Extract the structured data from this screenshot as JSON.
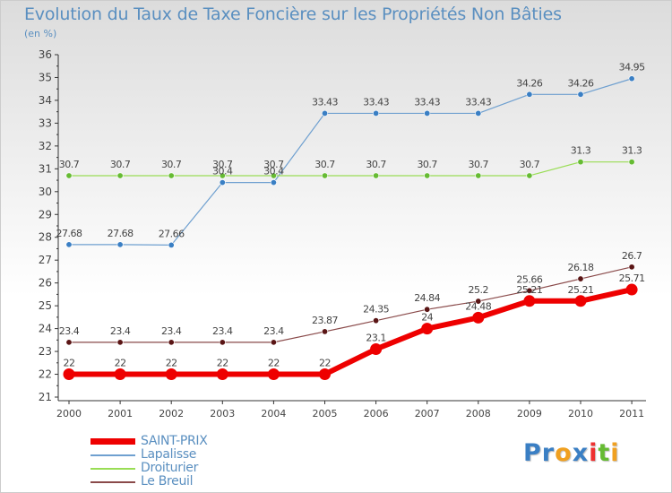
{
  "title": "Evolution du Taux de Taxe Foncière sur les Propriétés Non Bâties",
  "unit_label": "(en %)",
  "chart_data": {
    "type": "line",
    "title": "Evolution du Taux de Taxe Foncière sur les Propriétés Non Bâties",
    "ylabel": "(en %)",
    "xlabel": "",
    "categories": [
      "2000",
      "2001",
      "2002",
      "2003",
      "2004",
      "2005",
      "2006",
      "2007",
      "2008",
      "2009",
      "2010",
      "2011"
    ],
    "ylim": [
      21,
      36
    ],
    "yticks": [
      "21",
      "22",
      "23",
      "24",
      "25",
      "26",
      "27",
      "28",
      "29",
      "30",
      "31",
      "32",
      "33",
      "34",
      "35",
      "36"
    ],
    "grid": false,
    "legend_position": "bottom-left",
    "series": [
      {
        "name": "Lapalisse",
        "color": "#6fa0d0",
        "point_color": "#3a7fc4",
        "values": [
          27.68,
          27.68,
          27.66,
          30.4,
          30.4,
          33.43,
          33.43,
          33.43,
          33.43,
          34.26,
          34.26,
          34.95
        ],
        "labels": [
          "27.68",
          "27.68",
          "27.66",
          "30.4",
          "30.4",
          "33.43",
          "33.43",
          "33.43",
          "33.43",
          "34.26",
          "34.26",
          "34.95"
        ]
      },
      {
        "name": "Droiturier",
        "color": "#99dd55",
        "point_color": "#66bb33",
        "values": [
          30.7,
          30.7,
          30.7,
          30.7,
          30.7,
          30.7,
          30.7,
          30.7,
          30.7,
          30.7,
          31.3,
          31.3
        ],
        "labels": [
          "30.7",
          "30.7",
          "30.7",
          "30.7",
          "30.7",
          "30.7",
          "30.7",
          "30.7",
          "30.7",
          "30.7",
          "31.3",
          "31.3"
        ]
      },
      {
        "name": "Le Breuil",
        "color": "#8a4a4a",
        "point_color": "#5a1515",
        "values": [
          23.4,
          23.4,
          23.4,
          23.4,
          23.4,
          23.87,
          24.35,
          24.84,
          25.2,
          25.66,
          26.18,
          26.7
        ],
        "labels": [
          "23.4",
          "23.4",
          "23.4",
          "23.4",
          "23.4",
          "23.87",
          "24.35",
          "24.84",
          "25.2",
          "25.66",
          "26.18",
          "26.7"
        ]
      },
      {
        "name": "SAINT-PRIX",
        "color": "#ee0000",
        "point_color": "#ee0000",
        "values": [
          22,
          22,
          22,
          22,
          22,
          22,
          23.1,
          24,
          24.48,
          25.21,
          25.21,
          25.71
        ],
        "labels": [
          "22",
          "22",
          "22",
          "22",
          "22",
          "22",
          "23.1",
          "24",
          "24.48",
          "25.21",
          "25.21",
          "25.71"
        ]
      }
    ]
  },
  "legend": [
    {
      "name": "SAINT-PRIX",
      "color": "#ee0000"
    },
    {
      "name": "Lapalisse",
      "color": "#6fa0d0"
    },
    {
      "name": "Droiturier",
      "color": "#99dd55"
    },
    {
      "name": "Le Breuil",
      "color": "#8a4a4a"
    }
  ],
  "logo": {
    "letters": [
      "P",
      "r",
      "o",
      "x",
      "i",
      "t",
      "i"
    ],
    "colors": [
      "#3a7fc4",
      "#3a7fc4",
      "#f0a020",
      "#3a7fc4",
      "#ee3030",
      "#66bb33",
      "#f0a020"
    ]
  }
}
